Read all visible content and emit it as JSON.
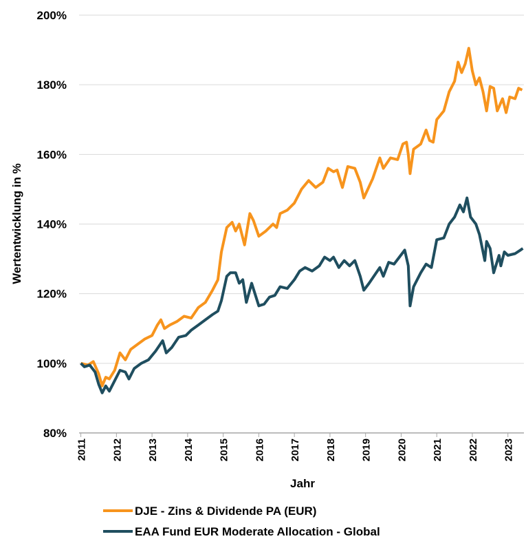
{
  "chart_data": {
    "type": "line",
    "x_label": "Jahr",
    "y_label": "Wertentwicklung in %",
    "xlim": [
      2010.95,
      2023.45
    ],
    "xticks": [
      2011,
      2012,
      2013,
      2014,
      2015,
      2016,
      2017,
      2018,
      2019,
      2020,
      2021,
      2022,
      2023
    ],
    "ylim": [
      80,
      200
    ],
    "yticks": [
      {
        "value": 80,
        "label": "80%"
      },
      {
        "value": 100,
        "label": "100%"
      },
      {
        "value": 120,
        "label": "120%"
      },
      {
        "value": 140,
        "label": "140%"
      },
      {
        "value": 160,
        "label": "160%"
      },
      {
        "value": 180,
        "label": "180%"
      },
      {
        "value": 200,
        "label": "200%"
      }
    ],
    "grid": true,
    "legend": "bottom",
    "series": [
      {
        "name": "DJE - Zins & Dividende PA (EUR)",
        "color": "#f7941d",
        "x": [
          2011.0,
          2011.2,
          2011.35,
          2011.5,
          2011.6,
          2011.7,
          2011.8,
          2011.95,
          2012.1,
          2012.25,
          2012.4,
          2012.6,
          2012.8,
          2013.0,
          2013.15,
          2013.25,
          2013.35,
          2013.5,
          2013.7,
          2013.9,
          2014.1,
          2014.3,
          2014.5,
          2014.7,
          2014.85,
          2014.95,
          2015.1,
          2015.25,
          2015.35,
          2015.45,
          2015.6,
          2015.75,
          2015.85,
          2016.0,
          2016.2,
          2016.4,
          2016.5,
          2016.6,
          2016.8,
          2017.0,
          2017.2,
          2017.4,
          2017.6,
          2017.8,
          2017.95,
          2018.1,
          2018.2,
          2018.35,
          2018.5,
          2018.7,
          2018.85,
          2018.95,
          2019.2,
          2019.4,
          2019.5,
          2019.7,
          2019.9,
          2020.05,
          2020.15,
          2020.2,
          2020.25,
          2020.35,
          2020.55,
          2020.7,
          2020.8,
          2020.9,
          2021.0,
          2021.2,
          2021.35,
          2021.5,
          2021.6,
          2021.7,
          2021.8,
          2021.9,
          2022.0,
          2022.1,
          2022.2,
          2022.3,
          2022.4,
          2022.5,
          2022.6,
          2022.7,
          2022.85,
          2022.95,
          2023.05,
          2023.2,
          2023.3,
          2023.4
        ],
        "values": [
          100,
          99.5,
          100.5,
          97,
          93.5,
          96,
          95.5,
          98,
          103,
          101,
          104,
          105.5,
          107,
          108,
          111,
          112.5,
          110,
          111,
          112,
          113.5,
          113,
          116,
          117.5,
          121,
          124,
          132,
          139,
          140.5,
          138,
          140,
          134,
          143,
          141,
          136.5,
          138,
          140,
          139,
          143,
          144,
          146,
          150,
          152.5,
          150.5,
          152,
          156,
          155,
          155.5,
          150.5,
          156.5,
          156,
          152,
          147.5,
          153,
          159,
          156,
          159,
          158.5,
          163,
          163.5,
          160,
          154.5,
          161.5,
          163,
          167,
          164,
          163.5,
          170,
          172.5,
          178,
          181,
          186.5,
          183.5,
          186,
          190.5,
          184,
          180,
          182,
          178,
          172.5,
          179.5,
          179,
          172.5,
          176,
          172,
          176.5,
          176,
          179,
          178.5
        ]
      },
      {
        "name": "EAA Fund EUR Moderate Allocation - Global",
        "color": "#1f4e5f",
        "x": [
          2011.0,
          2011.1,
          2011.25,
          2011.4,
          2011.5,
          2011.6,
          2011.7,
          2011.8,
          2011.95,
          2012.1,
          2012.25,
          2012.35,
          2012.5,
          2012.7,
          2012.9,
          2013.1,
          2013.3,
          2013.4,
          2013.55,
          2013.75,
          2013.95,
          2014.1,
          2014.3,
          2014.5,
          2014.7,
          2014.85,
          2014.95,
          2015.1,
          2015.2,
          2015.35,
          2015.45,
          2015.55,
          2015.65,
          2015.8,
          2016.0,
          2016.15,
          2016.3,
          2016.45,
          2016.6,
          2016.8,
          2017.0,
          2017.15,
          2017.3,
          2017.5,
          2017.7,
          2017.85,
          2018.0,
          2018.1,
          2018.25,
          2018.4,
          2018.55,
          2018.7,
          2018.85,
          2018.95,
          2019.1,
          2019.3,
          2019.4,
          2019.5,
          2019.65,
          2019.8,
          2019.95,
          2020.1,
          2020.2,
          2020.25,
          2020.35,
          2020.55,
          2020.7,
          2020.85,
          2021.0,
          2021.2,
          2021.35,
          2021.5,
          2021.65,
          2021.75,
          2021.85,
          2021.95,
          2022.1,
          2022.2,
          2022.35,
          2022.4,
          2022.5,
          2022.6,
          2022.75,
          2022.8,
          2022.9,
          2023.0,
          2023.2,
          2023.35,
          2023.42
        ],
        "values": [
          100,
          99,
          99.5,
          97.5,
          94,
          91.5,
          93.5,
          92,
          95,
          98,
          97.5,
          95.5,
          98.5,
          100,
          101,
          103.5,
          106.5,
          103,
          104.5,
          107.5,
          108,
          109.5,
          111,
          112.5,
          114,
          115,
          118,
          125,
          126,
          126,
          123,
          124,
          117.5,
          123,
          116.5,
          117,
          119,
          119.5,
          122,
          121.5,
          124,
          126.5,
          127.5,
          126.5,
          128,
          130.5,
          129.5,
          130.5,
          127.5,
          129.5,
          128,
          129.5,
          125,
          121,
          123,
          126,
          127.5,
          125,
          129,
          128.5,
          130.5,
          132.5,
          128,
          116.5,
          122,
          126,
          128.5,
          127.5,
          135.5,
          136,
          140,
          142,
          145.5,
          143.5,
          147.5,
          142,
          140,
          137,
          129.5,
          135,
          133,
          126,
          131,
          128,
          132,
          131,
          131.5,
          132.5,
          133
        ]
      }
    ]
  }
}
